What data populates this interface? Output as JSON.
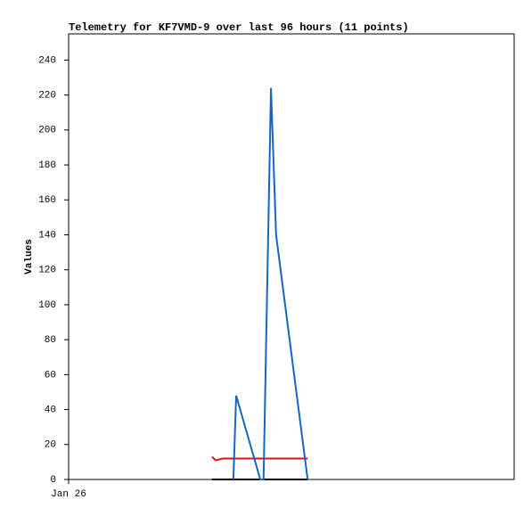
{
  "chart_data": {
    "type": "line",
    "title": "Telemetry for KF7VMD-9 over last 96 hours (11 points)",
    "ylabel": "Values",
    "x": [
      30.9,
      31.7,
      33.2,
      34.2,
      35.5,
      36.1,
      41.3,
      42.0,
      43.6,
      44.7,
      51.5
    ],
    "xlim": [
      0,
      96
    ],
    "xticks": [
      {
        "value": 0,
        "label": "Jan 26"
      }
    ],
    "ylim": [
      0,
      255
    ],
    "yticks": [
      0,
      20,
      40,
      60,
      80,
      100,
      120,
      140,
      160,
      180,
      200,
      220,
      240
    ],
    "grid": false,
    "series": [
      {
        "color": "#000000",
        "values": [
          0,
          0,
          0,
          0,
          0,
          0,
          0,
          0,
          0,
          0,
          0
        ]
      },
      {
        "color": "#e01010",
        "values": [
          13,
          11,
          12,
          12,
          12,
          12,
          12,
          12,
          12,
          12,
          12
        ]
      },
      {
        "color": "#1466c0",
        "values": [
          null,
          null,
          null,
          null,
          0,
          48,
          0,
          0,
          224,
          140,
          0
        ]
      }
    ]
  }
}
